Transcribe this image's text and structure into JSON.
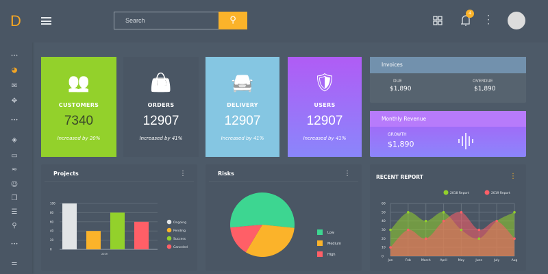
{
  "sidebar": {
    "logo": "D",
    "icons": [
      "more-icon",
      "dashboard-icon",
      "mail-icon",
      "gamepad-icon",
      "more-icon",
      "layers-icon",
      "calendar-icon",
      "chart-icon",
      "smile-icon",
      "copy-icon",
      "list-icon",
      "location-icon",
      "more-icon",
      "settings-sliders-icon"
    ]
  },
  "header": {
    "search_placeholder": "Search",
    "notification_count": "4"
  },
  "stats": [
    {
      "title": "CUSTOMERS",
      "value": "7340",
      "sub": "Increased by 20%",
      "color": "#93d12b",
      "icon": "users-icon"
    },
    {
      "title": "ORDERS",
      "value": "12907",
      "sub": "Increased by 41%",
      "color": "#4a5664",
      "icon": "shopping-bag-icon"
    },
    {
      "title": "DELIVERY",
      "value": "12907",
      "sub": "Increased by 41%",
      "color": "#85c6e2",
      "icon": "car-icon"
    },
    {
      "title": "USERS",
      "value": "12907",
      "sub": "Increased by 41%",
      "color": "#a05cf5",
      "icon": "shield-check-icon"
    }
  ],
  "invoices": {
    "title": "Invoices",
    "due_label": "DUE",
    "due": "$1,890",
    "overdue_label": "OVERDUE",
    "overdue": "$1,890"
  },
  "revenue": {
    "title": "Monthly Revenue",
    "growth_label": "GROWTH",
    "growth": "$1,890"
  },
  "chart_data": [
    {
      "type": "bar",
      "title": "Projects",
      "categories": [
        "Ongoing",
        "Pending",
        "Success",
        "Canceled"
      ],
      "values": [
        100,
        40,
        80,
        60
      ],
      "colors": [
        "#e1e4e6",
        "#fbb32a",
        "#93d12b",
        "#ff5f67"
      ],
      "xlabel": "2019",
      "yticks": [
        0,
        20,
        40,
        60,
        80,
        100
      ],
      "ylim": [
        0,
        100
      ],
      "grid": true,
      "legend": "right"
    },
    {
      "type": "pie",
      "title": "Risks",
      "categories": [
        "Low",
        "Medium",
        "High"
      ],
      "values": [
        53,
        32,
        15
      ],
      "colors": [
        "#3dd691",
        "#fbb32a",
        "#ff5f67"
      ],
      "legend": "right"
    },
    {
      "type": "area",
      "title": "RECENT REPORT",
      "categories": [
        "Jan",
        "Feb",
        "March",
        "April",
        "May",
        "June",
        "July",
        "Aug"
      ],
      "series": [
        {
          "name": "2018 Report",
          "values": [
            30,
            50,
            40,
            50,
            30,
            20,
            40,
            50
          ],
          "color": "#93d12b"
        },
        {
          "name": "2019 Report",
          "values": [
            10,
            30,
            20,
            40,
            50,
            30,
            40,
            20
          ],
          "color": "#ff5f67"
        }
      ],
      "yticks": [
        0,
        10,
        20,
        30,
        40,
        50,
        60
      ],
      "ylim": [
        0,
        60
      ],
      "grid": true,
      "legend": "top-right"
    }
  ]
}
